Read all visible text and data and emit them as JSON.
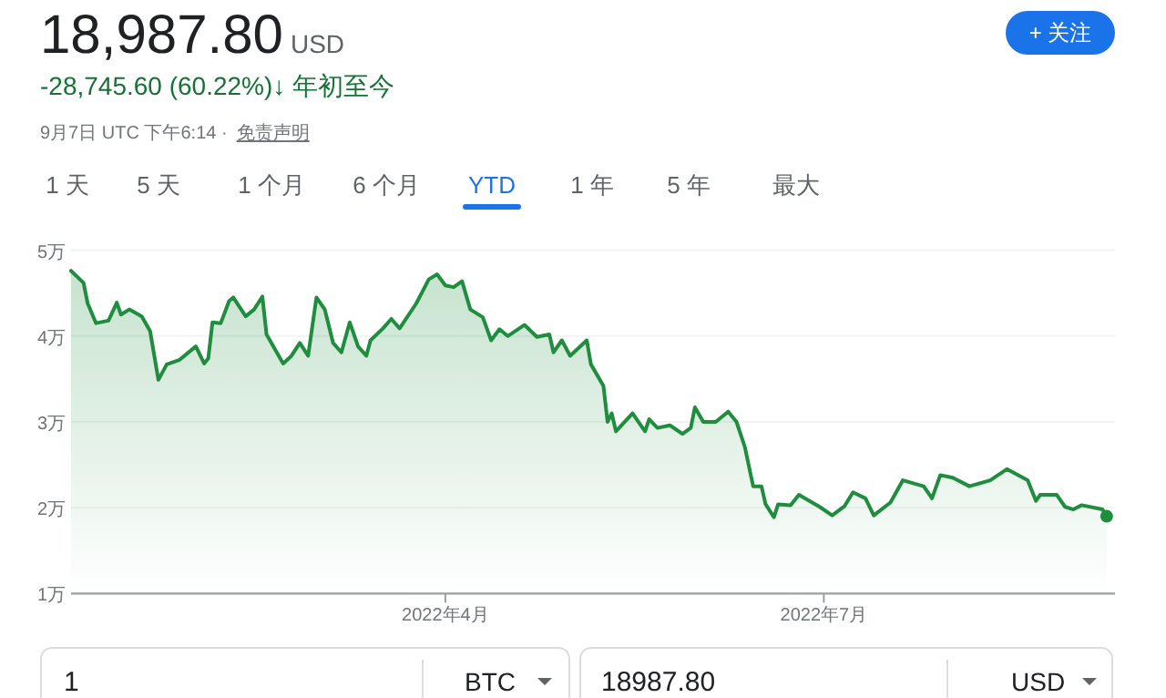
{
  "chart_data": {
    "type": "area",
    "title": "18,987.80",
    "annotations": [
      "USD",
      "-28,745.60 (60.22%)↓ 年初至今",
      "9月7日 UTC 下午6:14 ·",
      "免责声明",
      "1 天",
      "5 天",
      "1 个月",
      "6 个月",
      "YTD",
      "1 年",
      "5 年",
      "最大",
      "+ 关注",
      "1",
      "BTC",
      "18987.80",
      "USD"
    ],
    "xlim": [
      "2022-01-01",
      "2022-09-09"
    ],
    "xticks": [
      {
        "value": "2022-04-01",
        "label": "2022年4月"
      },
      {
        "value": "2022-07-01",
        "label": "2022年7月"
      }
    ],
    "ylim": [
      1,
      5
    ],
    "yticks": [
      {
        "value": 1,
        "label": "1万"
      },
      {
        "value": 2,
        "label": "2万"
      },
      {
        "value": 3,
        "label": "3万"
      },
      {
        "value": 4,
        "label": "4万"
      },
      {
        "value": 5,
        "label": "5万"
      }
    ],
    "grid": "y",
    "series": [
      {
        "color": "#1e8e3e",
        "x": [
          "2022-01-01",
          "2022-01-04",
          "2022-01-05",
          "2022-01-07",
          "2022-01-10",
          "2022-01-12",
          "2022-01-13",
          "2022-01-15",
          "2022-01-18",
          "2022-01-20",
          "2022-01-22",
          "2022-01-24",
          "2022-01-27",
          "2022-01-29",
          "2022-01-31",
          "2022-02-02",
          "2022-02-03",
          "2022-02-04",
          "2022-02-06",
          "2022-02-08",
          "2022-02-09",
          "2022-02-12",
          "2022-02-14",
          "2022-02-16",
          "2022-02-17",
          "2022-02-21",
          "2022-02-23",
          "2022-02-25",
          "2022-02-27",
          "2022-03-01",
          "2022-03-03",
          "2022-03-05",
          "2022-03-07",
          "2022-03-09",
          "2022-03-11",
          "2022-03-13",
          "2022-03-14",
          "2022-03-17",
          "2022-03-19",
          "2022-03-21",
          "2022-03-25",
          "2022-03-28",
          "2022-03-30",
          "2022-04-01",
          "2022-04-03",
          "2022-04-05",
          "2022-04-07",
          "2022-04-10",
          "2022-04-12",
          "2022-04-14",
          "2022-04-16",
          "2022-04-20",
          "2022-04-23",
          "2022-04-26",
          "2022-04-27",
          "2022-04-29",
          "2022-05-01",
          "2022-05-05",
          "2022-05-06",
          "2022-05-09",
          "2022-05-10",
          "2022-05-11",
          "2022-05-12",
          "2022-05-16",
          "2022-05-19",
          "2022-05-20",
          "2022-05-22",
          "2022-05-25",
          "2022-05-28",
          "2022-05-30",
          "2022-05-31",
          "2022-06-02",
          "2022-06-05",
          "2022-06-08",
          "2022-06-10",
          "2022-06-12",
          "2022-06-14",
          "2022-06-16",
          "2022-06-17",
          "2022-06-19",
          "2022-06-20",
          "2022-06-23",
          "2022-06-25",
          "2022-06-30",
          "2022-07-03",
          "2022-07-06",
          "2022-07-08",
          "2022-07-11",
          "2022-07-13",
          "2022-07-17",
          "2022-07-20",
          "2022-07-25",
          "2022-07-27",
          "2022-07-29",
          "2022-08-01",
          "2022-08-05",
          "2022-08-10",
          "2022-08-14",
          "2022-08-19",
          "2022-08-21",
          "2022-08-22",
          "2022-08-26",
          "2022-08-28",
          "2022-08-30",
          "2022-09-01",
          "2022-09-06",
          "2022-09-07"
        ],
        "values": [
          4.76,
          4.62,
          4.38,
          4.15,
          4.18,
          4.39,
          4.25,
          4.31,
          4.23,
          4.06,
          3.49,
          3.67,
          3.72,
          3.8,
          3.88,
          3.68,
          3.74,
          4.16,
          4.15,
          4.41,
          4.45,
          4.23,
          4.31,
          4.46,
          4.02,
          3.68,
          3.77,
          3.92,
          3.77,
          4.45,
          4.31,
          3.92,
          3.81,
          4.16,
          3.88,
          3.77,
          3.95,
          4.09,
          4.2,
          4.09,
          4.38,
          4.66,
          4.72,
          4.59,
          4.57,
          4.64,
          4.31,
          4.22,
          3.95,
          4.08,
          4,
          4.13,
          3.99,
          4.02,
          3.81,
          3.95,
          3.77,
          3.95,
          3.67,
          3.42,
          3,
          3.1,
          2.89,
          3.1,
          2.89,
          3.03,
          2.93,
          2.96,
          2.86,
          2.93,
          3.17,
          3,
          3,
          3.12,
          3,
          2.71,
          2.25,
          2.25,
          2.04,
          1.89,
          2.04,
          2.03,
          2.15,
          2.01,
          1.91,
          2.02,
          2.18,
          2.11,
          1.91,
          2.06,
          2.32,
          2.25,
          2.11,
          2.38,
          2.35,
          2.25,
          2.32,
          2.45,
          2.32,
          2.08,
          2.15,
          2.15,
          2.01,
          1.98,
          2.03,
          1.98,
          1.9
        ]
      },
      {
        "type": "scatter",
        "color": "#1e8e3e",
        "x": [
          "2022-09-07"
        ],
        "values": [
          1.9
        ]
      }
    ]
  }
}
